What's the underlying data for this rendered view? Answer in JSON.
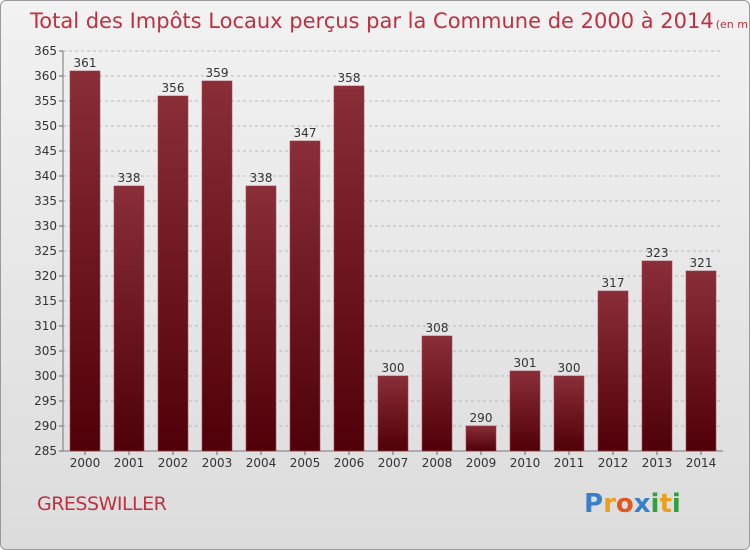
{
  "chart_data": {
    "type": "bar",
    "title": "Total des Impôts Locaux perçus par la Commune de 2000 à 2014",
    "subtitle": "(en milliers d'€)",
    "categories": [
      "2000",
      "2001",
      "2002",
      "2003",
      "2004",
      "2005",
      "2006",
      "2007",
      "2008",
      "2009",
      "2010",
      "2011",
      "2012",
      "2013",
      "2014"
    ],
    "values": [
      361,
      338,
      356,
      359,
      338,
      347,
      358,
      300,
      308,
      290,
      301,
      300,
      317,
      323,
      321
    ],
    "ylim": [
      285,
      365
    ],
    "yticks": [
      285,
      290,
      295,
      300,
      305,
      310,
      315,
      320,
      325,
      330,
      335,
      340,
      345,
      350,
      355,
      360,
      365
    ],
    "grid": true,
    "xlabel": "",
    "ylabel": ""
  },
  "commune": "GRESSWILLER",
  "logo": {
    "letters": [
      "P",
      "r",
      "o",
      "x",
      "i",
      "t",
      "i"
    ],
    "colors": [
      "#3a7fc8",
      "#e8a020",
      "#e05a20",
      "#3a7fc8",
      "#30a040",
      "#e8a020",
      "#30a040"
    ]
  },
  "colors": {
    "bar_top": "#8a2e38",
    "bar_bottom": "#500008",
    "title": "#c03040",
    "grid": "#b8b8b8"
  }
}
